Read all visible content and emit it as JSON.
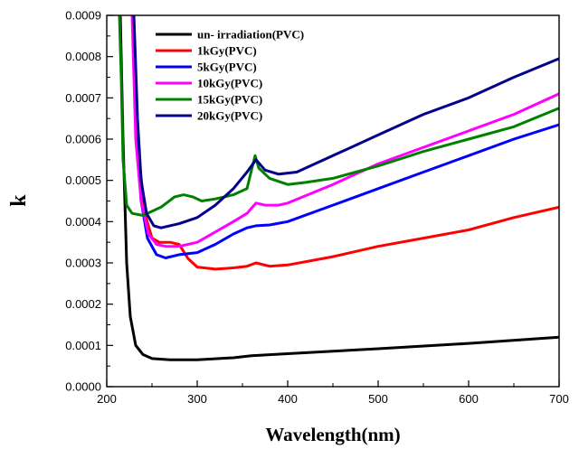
{
  "chart_data": {
    "type": "line",
    "xlabel": "Wavelength(nm)",
    "ylabel": "k",
    "xlim": [
      200,
      700
    ],
    "ylim": [
      0,
      0.0009
    ],
    "x_ticks": [
      200,
      300,
      400,
      500,
      600,
      700
    ],
    "x_tick_labels": [
      "200",
      "300",
      "400",
      "500",
      "600",
      "700"
    ],
    "y_ticks": [
      0,
      0.0001,
      0.0002,
      0.0003,
      0.0004,
      0.0005,
      0.0006,
      0.0007,
      0.0008,
      0.0009
    ],
    "y_tick_labels": [
      "0.0000",
      "0.0001",
      "0.0002",
      "0.0003",
      "0.0004",
      "0.0005",
      "0.0006",
      "0.0007",
      "0.0008",
      "0.0009"
    ],
    "grid": false,
    "legend_position": "top-left",
    "series": [
      {
        "name": "un- irradiation(PVC)",
        "color": "#000000",
        "points": [
          [
            215,
            0.0009
          ],
          [
            218,
            0.0006
          ],
          [
            222,
            0.0003
          ],
          [
            226,
            0.00017
          ],
          [
            232,
            0.0001
          ],
          [
            240,
            7.8e-05
          ],
          [
            250,
            6.8e-05
          ],
          [
            270,
            6.5e-05
          ],
          [
            300,
            6.5e-05
          ],
          [
            340,
            7e-05
          ],
          [
            360,
            7.5e-05
          ],
          [
            400,
            8e-05
          ],
          [
            500,
            9.2e-05
          ],
          [
            600,
            0.000105
          ],
          [
            700,
            0.00012
          ]
        ]
      },
      {
        "name": "1kGy(PVC)",
        "color": "#ff0000",
        "points": [
          [
            229,
            0.0009
          ],
          [
            232,
            0.0007
          ],
          [
            236,
            0.00055
          ],
          [
            242,
            0.00042
          ],
          [
            250,
            0.00036
          ],
          [
            258,
            0.00035
          ],
          [
            270,
            0.00035
          ],
          [
            280,
            0.000345
          ],
          [
            290,
            0.00031
          ],
          [
            300,
            0.00029
          ],
          [
            320,
            0.000285
          ],
          [
            340,
            0.000288
          ],
          [
            355,
            0.000292
          ],
          [
            365,
            0.0003
          ],
          [
            380,
            0.000292
          ],
          [
            400,
            0.000295
          ],
          [
            450,
            0.000315
          ],
          [
            500,
            0.00034
          ],
          [
            550,
            0.00036
          ],
          [
            600,
            0.00038
          ],
          [
            650,
            0.00041
          ],
          [
            700,
            0.000435
          ]
        ]
      },
      {
        "name": "5kGy(PVC)",
        "color": "#0000ff",
        "points": [
          [
            229,
            0.0009
          ],
          [
            233,
            0.0006
          ],
          [
            238,
            0.00045
          ],
          [
            245,
            0.00036
          ],
          [
            255,
            0.00032
          ],
          [
            265,
            0.000312
          ],
          [
            280,
            0.00032
          ],
          [
            300,
            0.000325
          ],
          [
            320,
            0.000345
          ],
          [
            340,
            0.00037
          ],
          [
            355,
            0.000385
          ],
          [
            365,
            0.00039
          ],
          [
            380,
            0.000392
          ],
          [
            400,
            0.0004
          ],
          [
            450,
            0.00044
          ],
          [
            500,
            0.00048
          ],
          [
            550,
            0.00052
          ],
          [
            600,
            0.00056
          ],
          [
            650,
            0.0006
          ],
          [
            700,
            0.000635
          ]
        ]
      },
      {
        "name": "10kGy(PVC)",
        "color": "#ff00ff",
        "points": [
          [
            228,
            0.0009
          ],
          [
            232,
            0.0006
          ],
          [
            238,
            0.00045
          ],
          [
            246,
            0.00037
          ],
          [
            255,
            0.000345
          ],
          [
            265,
            0.00034
          ],
          [
            280,
            0.00034
          ],
          [
            300,
            0.00035
          ],
          [
            320,
            0.000375
          ],
          [
            340,
            0.0004
          ],
          [
            355,
            0.00042
          ],
          [
            365,
            0.000445
          ],
          [
            375,
            0.00044
          ],
          [
            390,
            0.00044
          ],
          [
            400,
            0.000445
          ],
          [
            450,
            0.00049
          ],
          [
            500,
            0.00054
          ],
          [
            550,
            0.00058
          ],
          [
            600,
            0.00062
          ],
          [
            650,
            0.00066
          ],
          [
            700,
            0.00071
          ]
        ]
      },
      {
        "name": "15kGy(PVC)",
        "color": "#008000",
        "points": [
          [
            214,
            0.0009
          ],
          [
            216,
            0.00075
          ],
          [
            218,
            0.00055
          ],
          [
            222,
            0.00044
          ],
          [
            228,
            0.00042
          ],
          [
            240,
            0.000415
          ],
          [
            260,
            0.000435
          ],
          [
            275,
            0.00046
          ],
          [
            285,
            0.000465
          ],
          [
            295,
            0.00046
          ],
          [
            305,
            0.00045
          ],
          [
            320,
            0.000455
          ],
          [
            340,
            0.000465
          ],
          [
            355,
            0.00048
          ],
          [
            360,
            0.000525
          ],
          [
            364,
            0.00056
          ],
          [
            368,
            0.00053
          ],
          [
            380,
            0.000505
          ],
          [
            400,
            0.00049
          ],
          [
            420,
            0.000495
          ],
          [
            450,
            0.000505
          ],
          [
            500,
            0.000535
          ],
          [
            550,
            0.00057
          ],
          [
            600,
            0.0006
          ],
          [
            650,
            0.00063
          ],
          [
            700,
            0.000675
          ]
        ]
      },
      {
        "name": "20kGy(PVC)",
        "color": "#00008b",
        "points": [
          [
            230,
            0.0009
          ],
          [
            234,
            0.00065
          ],
          [
            238,
            0.0005
          ],
          [
            244,
            0.00042
          ],
          [
            252,
            0.00039
          ],
          [
            260,
            0.000385
          ],
          [
            280,
            0.000395
          ],
          [
            300,
            0.00041
          ],
          [
            320,
            0.00044
          ],
          [
            340,
            0.00048
          ],
          [
            355,
            0.00052
          ],
          [
            365,
            0.00055
          ],
          [
            375,
            0.000525
          ],
          [
            390,
            0.000515
          ],
          [
            410,
            0.00052
          ],
          [
            450,
            0.00056
          ],
          [
            500,
            0.00061
          ],
          [
            550,
            0.00066
          ],
          [
            600,
            0.0007
          ],
          [
            650,
            0.00075
          ],
          [
            700,
            0.000795
          ]
        ]
      }
    ]
  }
}
